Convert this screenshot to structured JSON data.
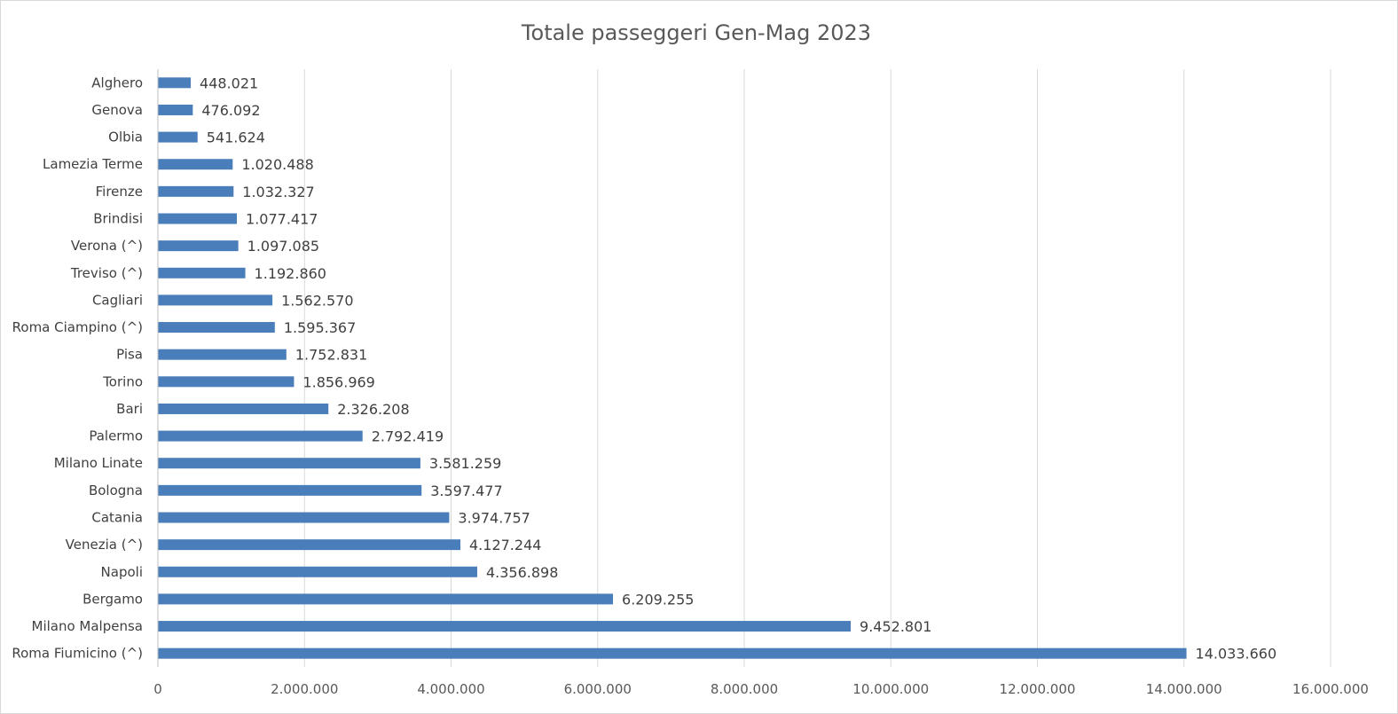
{
  "chart_data": {
    "type": "bar",
    "orientation": "horizontal",
    "title": "Totale passeggeri Gen-Mag 2023",
    "xlabel": "",
    "ylabel": "",
    "xlim": [
      0,
      16000000
    ],
    "x_ticks": [
      0,
      2000000,
      4000000,
      6000000,
      8000000,
      10000000,
      12000000,
      14000000,
      16000000
    ],
    "x_tick_labels": [
      "0",
      "2.000.000",
      "4.000.000",
      "6.000.000",
      "8.000.000",
      "10.000.000",
      "12.000.000",
      "14.000.000",
      "16.000.000"
    ],
    "grid": "vertical",
    "legend": "none",
    "bar_color": "#4a7ebb",
    "categories": [
      "Alghero",
      "Genova",
      "Olbia",
      "Lamezia Terme",
      "Firenze",
      "Brindisi",
      "Verona (^)",
      "Treviso (^)",
      "Cagliari",
      "Roma Ciampino (^)",
      "Pisa",
      "Torino",
      "Bari",
      "Palermo",
      "Milano Linate",
      "Bologna",
      "Catania",
      "Venezia (^)",
      "Napoli",
      "Bergamo",
      "Milano Malpensa",
      "Roma Fiumicino (^)"
    ],
    "values": [
      448021,
      476092,
      541624,
      1020488,
      1032327,
      1077417,
      1097085,
      1192860,
      1562570,
      1595367,
      1752831,
      1856969,
      2326208,
      2792419,
      3581259,
      3597477,
      3974757,
      4127244,
      4356898,
      6209255,
      9452801,
      14033660
    ],
    "value_labels": [
      "448.021",
      "476.092",
      "541.624",
      "1.020.488",
      "1.032.327",
      "1.077.417",
      "1.097.085",
      "1.192.860",
      "1.562.570",
      "1.595.367",
      "1.752.831",
      "1.856.969",
      "2.326.208",
      "2.792.419",
      "3.581.259",
      "3.597.477",
      "3.974.757",
      "4.127.244",
      "4.356.898",
      "6.209.255",
      "9.452.801",
      "14.033.660"
    ]
  }
}
